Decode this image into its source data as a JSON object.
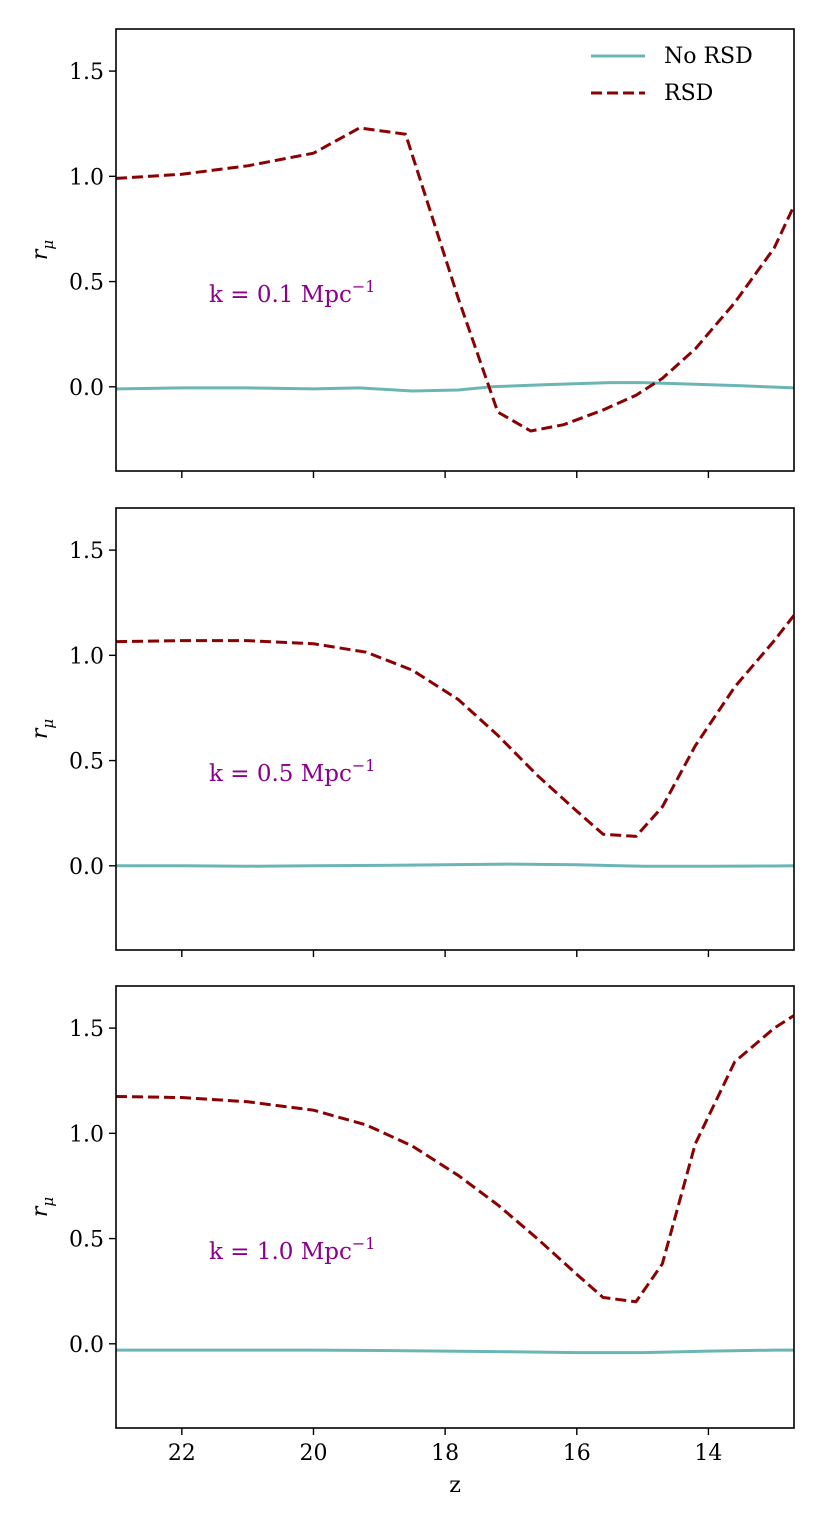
{
  "chart_data": [
    {
      "type": "line",
      "panel": "top",
      "annotation": {
        "text": "k = 0.1 Mpc",
        "sup": "−1"
      },
      "ylabel": {
        "base": "r",
        "sub": "μ"
      },
      "xlabel": "",
      "xlim": [
        23.0,
        12.7
      ],
      "ylim": [
        -0.4,
        1.7
      ],
      "yticks": [
        {
          "value": 0.0,
          "label": "0.0"
        },
        {
          "value": 0.5,
          "label": "0.5"
        },
        {
          "value": 1.0,
          "label": "1.0"
        },
        {
          "value": 1.5,
          "label": "1.5"
        }
      ],
      "xticks": [
        {
          "value": 22,
          "label": "22"
        },
        {
          "value": 20,
          "label": "20"
        },
        {
          "value": 18,
          "label": "18"
        },
        {
          "value": 16,
          "label": "16"
        },
        {
          "value": 14,
          "label": "14"
        }
      ],
      "show_xtick_labels": false,
      "series": [
        {
          "name": "No RSD",
          "style": "solid",
          "color": "#6cb5b5",
          "x": [
            23.0,
            22.0,
            21.0,
            20.0,
            19.3,
            18.5,
            17.8,
            17.3,
            16.5,
            15.5,
            15.0,
            14.5,
            13.5,
            12.7
          ],
          "y": [
            -0.01,
            -0.005,
            -0.005,
            -0.01,
            -0.005,
            -0.02,
            -0.015,
            0.0,
            0.01,
            0.02,
            0.02,
            0.015,
            0.005,
            -0.005
          ]
        },
        {
          "name": "RSD",
          "style": "dashed",
          "color": "#8b0000",
          "x": [
            23.0,
            22.0,
            21.0,
            20.0,
            19.3,
            18.6,
            17.8,
            17.2,
            16.7,
            16.2,
            15.6,
            15.1,
            14.7,
            14.2,
            13.6,
            13.0,
            12.7
          ],
          "y": [
            0.99,
            1.01,
            1.05,
            1.11,
            1.23,
            1.2,
            0.42,
            -0.12,
            -0.21,
            -0.18,
            -0.11,
            -0.04,
            0.04,
            0.18,
            0.4,
            0.66,
            0.86
          ]
        }
      ],
      "legend": {
        "position": "top-right",
        "entries": [
          "No RSD",
          "RSD"
        ]
      }
    },
    {
      "type": "line",
      "panel": "middle",
      "annotation": {
        "text": "k = 0.5 Mpc",
        "sup": "−1"
      },
      "ylabel": {
        "base": "r",
        "sub": "μ"
      },
      "xlabel": "",
      "xlim": [
        23.0,
        12.7
      ],
      "ylim": [
        -0.4,
        1.7
      ],
      "yticks": [
        {
          "value": 0.0,
          "label": "0.0"
        },
        {
          "value": 0.5,
          "label": "0.5"
        },
        {
          "value": 1.0,
          "label": "1.0"
        },
        {
          "value": 1.5,
          "label": "1.5"
        }
      ],
      "xticks": [
        {
          "value": 22,
          "label": "22"
        },
        {
          "value": 20,
          "label": "20"
        },
        {
          "value": 18,
          "label": "18"
        },
        {
          "value": 16,
          "label": "16"
        },
        {
          "value": 14,
          "label": "14"
        }
      ],
      "show_xtick_labels": false,
      "series": [
        {
          "name": "No RSD",
          "style": "solid",
          "color": "#6cb5b5",
          "x": [
            23.0,
            22.0,
            21.0,
            20.0,
            19.0,
            18.0,
            17.0,
            16.0,
            15.0,
            14.0,
            13.0,
            12.7
          ],
          "y": [
            0.0,
            0.0,
            -0.002,
            0.0,
            0.002,
            0.005,
            0.008,
            0.005,
            -0.002,
            -0.002,
            -0.001,
            0.0
          ]
        },
        {
          "name": "RSD",
          "style": "dashed",
          "color": "#8b0000",
          "x": [
            23.0,
            22.0,
            21.0,
            20.0,
            19.2,
            18.5,
            17.8,
            17.2,
            16.6,
            16.0,
            15.6,
            15.1,
            14.7,
            14.2,
            13.6,
            13.0,
            12.7
          ],
          "y": [
            1.065,
            1.07,
            1.07,
            1.055,
            1.015,
            0.93,
            0.79,
            0.62,
            0.43,
            0.26,
            0.15,
            0.14,
            0.28,
            0.57,
            0.85,
            1.07,
            1.19
          ]
        }
      ]
    },
    {
      "type": "line",
      "panel": "bottom",
      "annotation": {
        "text": "k = 1.0 Mpc",
        "sup": "−1"
      },
      "ylabel": {
        "base": "r",
        "sub": "μ"
      },
      "xlabel": "z",
      "xlim": [
        23.0,
        12.7
      ],
      "ylim": [
        -0.4,
        1.7
      ],
      "yticks": [
        {
          "value": 0.0,
          "label": "0.0"
        },
        {
          "value": 0.5,
          "label": "0.5"
        },
        {
          "value": 1.0,
          "label": "1.0"
        },
        {
          "value": 1.5,
          "label": "1.5"
        }
      ],
      "xticks": [
        {
          "value": 22,
          "label": "22"
        },
        {
          "value": 20,
          "label": "20"
        },
        {
          "value": 18,
          "label": "18"
        },
        {
          "value": 16,
          "label": "16"
        },
        {
          "value": 14,
          "label": "14"
        }
      ],
      "show_xtick_labels": true,
      "series": [
        {
          "name": "No RSD",
          "style": "solid",
          "color": "#6cb5b5",
          "x": [
            23.0,
            22.0,
            21.0,
            20.0,
            19.0,
            18.0,
            17.0,
            16.0,
            15.0,
            14.0,
            13.0,
            12.7
          ],
          "y": [
            -0.03,
            -0.03,
            -0.03,
            -0.03,
            -0.032,
            -0.035,
            -0.038,
            -0.042,
            -0.042,
            -0.035,
            -0.03,
            -0.03
          ]
        },
        {
          "name": "RSD",
          "style": "dashed",
          "color": "#8b0000",
          "x": [
            23.0,
            22.0,
            21.0,
            20.0,
            19.2,
            18.5,
            17.8,
            17.2,
            16.6,
            16.0,
            15.6,
            15.1,
            14.7,
            14.2,
            13.6,
            13.0,
            12.7
          ],
          "y": [
            1.175,
            1.17,
            1.15,
            1.11,
            1.04,
            0.94,
            0.8,
            0.66,
            0.5,
            0.33,
            0.22,
            0.2,
            0.38,
            0.95,
            1.34,
            1.5,
            1.56
          ]
        }
      ]
    }
  ],
  "colors": {
    "no_rsd": "#6cb5b5",
    "rsd": "#8b0000",
    "annotation": "#8b008b",
    "frame": "#000000"
  }
}
